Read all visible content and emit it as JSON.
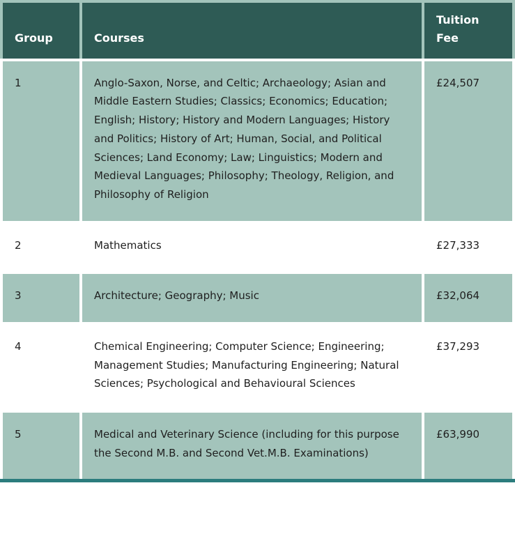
{
  "chart_data": {
    "type": "table",
    "columns": [
      "Group",
      "Courses",
      "Tuition Fee"
    ],
    "rows": [
      {
        "group": "1",
        "courses": "Anglo-Saxon, Norse, and Celtic; Archaeology; Asian and Middle Eastern Studies; Classics; Economics; Education; English; History; History and Modern Languages; History and Politics; History of Art; Human, Social, and Political Sciences; Land Economy; Law; Linguistics; Modern and Medieval Languages; Philosophy; Theology, Religion, and Philosophy of Religion",
        "fee": "£24,507"
      },
      {
        "group": "2",
        "courses": "Mathematics",
        "fee": "£27,333"
      },
      {
        "group": "3",
        "courses": "Architecture; Geography; Music",
        "fee": "£32,064"
      },
      {
        "group": "4",
        "courses": "Chemical Engineering; Computer Science; Engineering; Management Studies; Manufacturing Engineering; Natural Sciences; Psychological and Behavioural Sciences",
        "fee": "£37,293"
      },
      {
        "group": "5",
        "courses": "Medical and Veterinary Science (including for this purpose the Second M.B. and Second Vet.M.B. Examinations)",
        "fee": "£63,990"
      }
    ]
  },
  "colors": {
    "header_bg": "#2e5b55",
    "header_text": "#ffffff",
    "row_shaded_bg": "#a3c4bb",
    "row_plain_bg": "#ffffff",
    "body_text": "#1f1f1f",
    "bottom_bar": "#2b7c7d",
    "cell_gap_header": "#a3c4bb",
    "cell_gap_body": "#ffffff"
  }
}
